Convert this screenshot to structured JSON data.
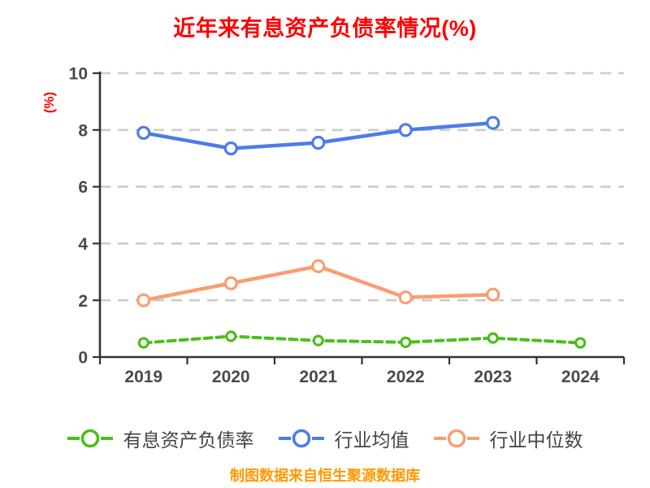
{
  "chart_data": {
    "type": "line",
    "title": "近年来有息资产负债率情况(%)",
    "ylabel": "(%)",
    "footer": "制图数据来自恒生聚源数据库",
    "categories": [
      "2019",
      "2020",
      "2021",
      "2022",
      "2023",
      "2024"
    ],
    "ylim": [
      0,
      10
    ],
    "yticks": [
      0,
      2,
      4,
      6,
      8,
      10
    ],
    "grid": {
      "horizontal": true,
      "style": "dashed",
      "color": "#cccccc"
    },
    "legend_position": "bottom",
    "series": [
      {
        "name": "有息资产负债率",
        "color": "#4cbe1c",
        "line_style": "dashed",
        "marker": "circle",
        "values": [
          0.5,
          0.73,
          0.58,
          0.52,
          0.67,
          0.5
        ]
      },
      {
        "name": "行业均值",
        "color": "#4d7ce8",
        "line_style": "solid",
        "marker": "circle",
        "values": [
          7.9,
          7.35,
          7.55,
          8.0,
          8.25,
          null
        ]
      },
      {
        "name": "行业中位数",
        "color": "#f89e73",
        "line_style": "solid",
        "marker": "circle",
        "values": [
          2.0,
          2.6,
          3.2,
          2.1,
          2.2,
          null
        ]
      }
    ],
    "colors": {
      "title": "#ff0000",
      "ylabel": "#ff0000",
      "footer": "#ff9900",
      "axis": "#333333",
      "tick_label": "#4a4a4a",
      "legend_text": "#434347",
      "marker_fill": "#ffffff"
    }
  }
}
